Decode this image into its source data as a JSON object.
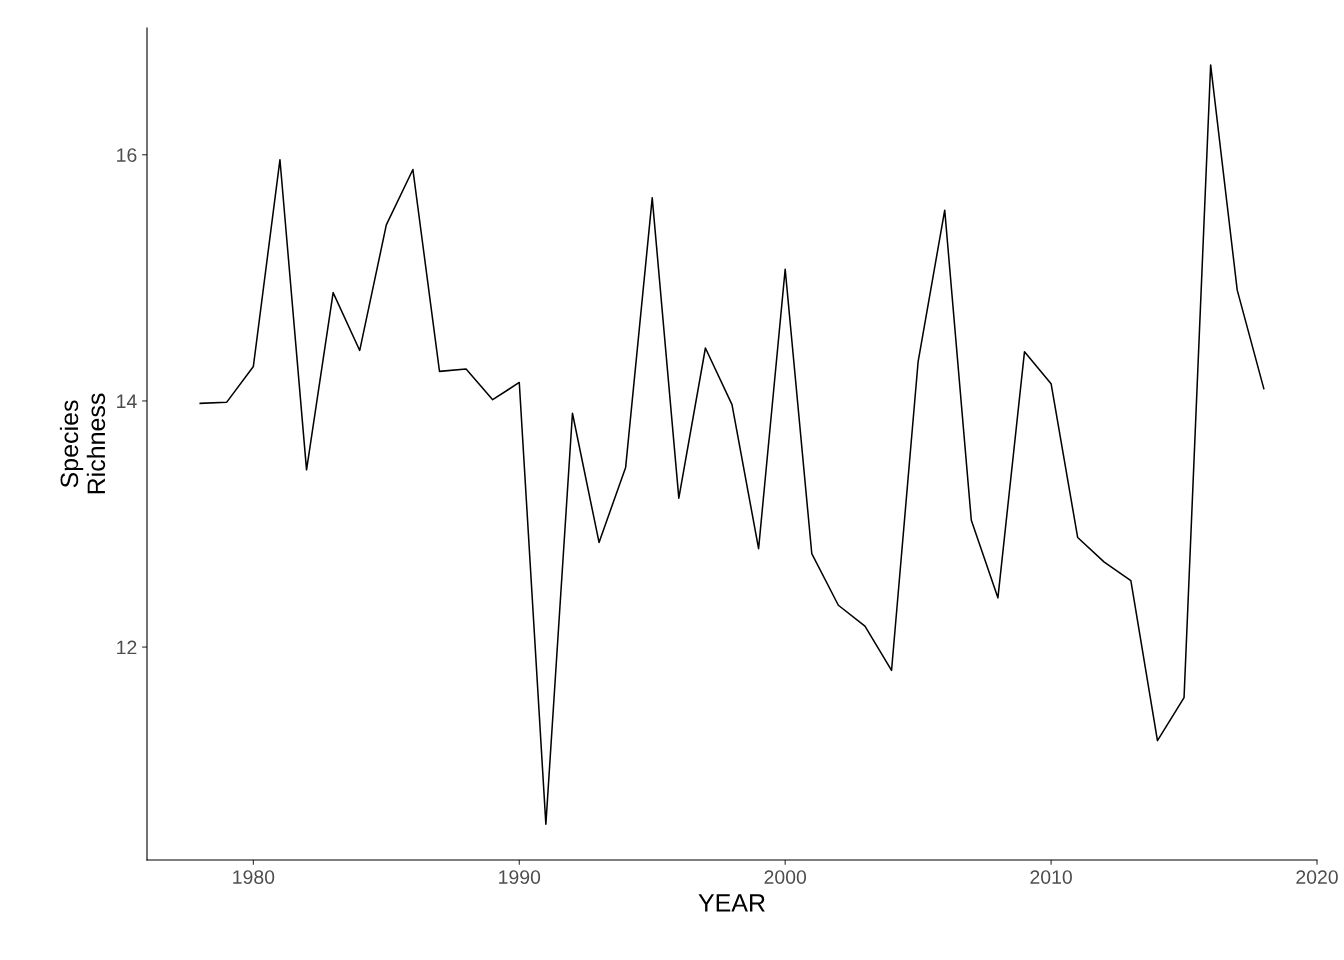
{
  "chart_data": {
    "type": "line",
    "xlabel": "YEAR",
    "ylabel": "Species\nRichness",
    "x": [
      1978,
      1979,
      1980,
      1981,
      1982,
      1983,
      1984,
      1985,
      1986,
      1987,
      1988,
      1989,
      1990,
      1991,
      1992,
      1993,
      1994,
      1995,
      1996,
      1997,
      1998,
      1999,
      2000,
      2001,
      2002,
      2003,
      2004,
      2005,
      2006,
      2007,
      2008,
      2009,
      2010,
      2011,
      2012,
      2013,
      2014,
      2015,
      2016,
      2017,
      2018
    ],
    "series": [
      {
        "color": "#000000",
        "values": [
          13.98,
          13.99,
          14.28,
          15.96,
          13.44,
          14.88,
          14.41,
          15.43,
          15.88,
          14.24,
          14.26,
          14.01,
          14.15,
          10.56,
          13.9,
          12.85,
          13.46,
          15.65,
          13.21,
          14.43,
          13.97,
          12.8,
          15.07,
          12.76,
          12.34,
          12.17,
          11.81,
          14.32,
          15.55,
          13.03,
          12.4,
          14.4,
          14.14,
          12.89,
          12.69,
          12.54,
          11.24,
          11.59,
          16.73,
          14.9,
          14.1
        ]
      }
    ],
    "xlim": [
      1976,
      2020
    ],
    "xticks": [
      1980,
      1990,
      2000,
      2010,
      2020
    ],
    "ylim": [
      10.27,
      17.03
    ],
    "yticks": [
      12,
      14,
      16
    ],
    "grid": false,
    "legend": false,
    "marker": "none",
    "line_style": "solid"
  }
}
